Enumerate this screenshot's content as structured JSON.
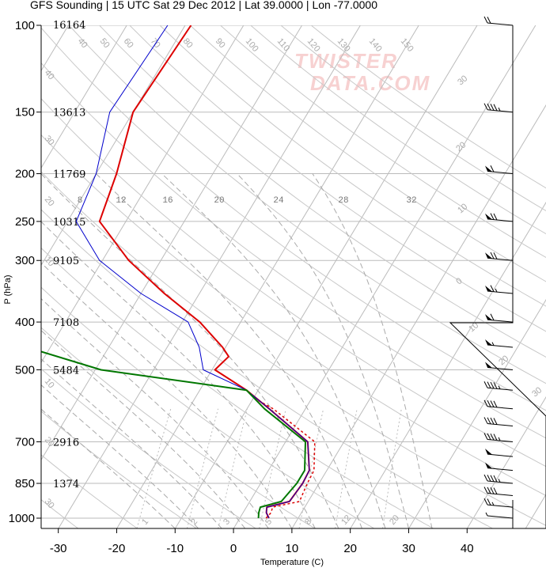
{
  "title": "GFS Sounding | 15 UTC Sat 29 Dec 2012 | Lat 39.0000 | Lon -77.0000",
  "watermark": [
    "TWISTER",
    "DATA.COM"
  ],
  "chart_data": {
    "type": "skew-t",
    "xlabel": "Temperature (C)",
    "ylabel": "P (hPa)",
    "pressure_ticks": [
      100,
      150,
      200,
      250,
      300,
      400,
      500,
      700,
      850,
      1000
    ],
    "temperature_ticks": [
      -30,
      -20,
      -10,
      0,
      10,
      20,
      30,
      40
    ],
    "xlim_at_1000hPa": [
      -33,
      48
    ],
    "ylim_hPa": [
      1050,
      100
    ],
    "heights_m": [
      {
        "p": 100,
        "h": "16164"
      },
      {
        "p": 150,
        "h": "13613"
      },
      {
        "p": 200,
        "h": "11769"
      },
      {
        "p": 250,
        "h": "10315"
      },
      {
        "p": 300,
        "h": "9105"
      },
      {
        "p": 400,
        "h": "7108"
      },
      {
        "p": 500,
        "h": "5484"
      },
      {
        "p": 700,
        "h": "2916"
      },
      {
        "p": 850,
        "h": "1374"
      }
    ],
    "mixing_ratio_labels": [
      "1",
      "2",
      "3",
      "5",
      "8",
      "12",
      "20"
    ],
    "dry_adiabat_labels": [
      "40",
      "50",
      "60",
      "70",
      "80",
      "90",
      "100",
      "110",
      "120",
      "130",
      "140",
      "150",
      "160",
      "170",
      "180"
    ],
    "left_adiabat_labels": [
      "40",
      "30",
      "20",
      "10",
      "10",
      "20",
      "30"
    ],
    "moist_adiabat_labels": [
      "8",
      "12",
      "16",
      "20",
      "24",
      "28",
      "32"
    ],
    "right_labels": [
      "30",
      "20",
      "10",
      "0",
      "10",
      "20",
      "30"
    ],
    "series": [
      {
        "name": "",
        "color": "#dd0000",
        "points": [
          [
            1000,
            5
          ],
          [
            975,
            4
          ],
          [
            950,
            3.5
          ],
          [
            925,
            6.8
          ],
          [
            850,
            7.2
          ],
          [
            800,
            7.0
          ],
          [
            700,
            3.8
          ],
          [
            600,
            -6.2
          ],
          [
            550,
            -12.0
          ],
          [
            500,
            -19.5
          ],
          [
            470,
            -18.5
          ],
          [
            450,
            -20.5
          ],
          [
            400,
            -27
          ],
          [
            350,
            -36
          ],
          [
            300,
            -45.5
          ],
          [
            250,
            -54.5
          ],
          [
            200,
            -56.5
          ],
          [
            150,
            -60
          ],
          [
            100,
            -59
          ]
        ]
      },
      {
        "name": "",
        "color": "#dd0000",
        "dashed": true,
        "points": [
          [
            1000,
            4.5
          ],
          [
            975,
            4.8
          ],
          [
            950,
            4.5
          ],
          [
            925,
            8.5
          ],
          [
            850,
            8.0
          ],
          [
            800,
            7.8
          ],
          [
            700,
            5.0
          ],
          [
            600,
            -5.5
          ],
          [
            570,
            -10.0
          ]
        ]
      },
      {
        "name": "",
        "color": "#0000cc",
        "points": [
          [
            1000,
            5
          ],
          [
            975,
            4
          ],
          [
            950,
            3.5
          ],
          [
            925,
            6.8
          ],
          [
            850,
            7.2
          ],
          [
            800,
            7.0
          ],
          [
            700,
            3.8
          ],
          [
            600,
            -6.2
          ],
          [
            550,
            -12.0
          ],
          [
            500,
            -21.5
          ],
          [
            450,
            -24.5
          ],
          [
            400,
            -29
          ],
          [
            350,
            -40
          ],
          [
            300,
            -50.5
          ],
          [
            250,
            -58.5
          ],
          [
            200,
            -60
          ],
          [
            150,
            -64
          ],
          [
            100,
            -63
          ]
        ]
      },
      {
        "name": "",
        "color": "#007700",
        "points": [
          [
            1000,
            3.2
          ],
          [
            975,
            2.7
          ],
          [
            950,
            2.4
          ],
          [
            925,
            5.4
          ],
          [
            850,
            6.2
          ],
          [
            800,
            6.2
          ],
          [
            700,
            3.4
          ],
          [
            600,
            -7.0
          ],
          [
            550,
            -12.0
          ],
          [
            500,
            -39
          ],
          [
            450,
            -54
          ],
          [
            400,
            -61
          ],
          [
            350,
            -66
          ],
          [
            300,
            -72
          ],
          [
            250,
            -81
          ],
          [
            200,
            -88
          ],
          [
            150,
            -95
          ],
          [
            100,
            -103
          ]
        ]
      }
    ],
    "wind_barbs": [
      {
        "p": 1000,
        "spd_kt": 5,
        "dir": 280
      },
      {
        "p": 950,
        "spd_kt": 25,
        "dir": 280
      },
      {
        "p": 900,
        "spd_kt": 40,
        "dir": 270
      },
      {
        "p": 850,
        "spd_kt": 45,
        "dir": 270
      },
      {
        "p": 800,
        "spd_kt": 50,
        "dir": 265
      },
      {
        "p": 750,
        "spd_kt": 50,
        "dir": 265
      },
      {
        "p": 700,
        "spd_kt": 45,
        "dir": 260
      },
      {
        "p": 650,
        "spd_kt": 40,
        "dir": 260
      },
      {
        "p": 600,
        "spd_kt": 40,
        "dir": 265
      },
      {
        "p": 550,
        "spd_kt": 45,
        "dir": 265
      },
      {
        "p": 500,
        "spd_kt": 50,
        "dir": 265
      },
      {
        "p": 450,
        "spd_kt": 55,
        "dir": 265
      },
      {
        "p": 400,
        "spd_kt": 60,
        "dir": 265
      },
      {
        "p": 350,
        "spd_kt": 65,
        "dir": 265
      },
      {
        "p": 300,
        "spd_kt": 70,
        "dir": 265
      },
      {
        "p": 250,
        "spd_kt": 70,
        "dir": 265
      },
      {
        "p": 200,
        "spd_kt": 60,
        "dir": 265
      },
      {
        "p": 150,
        "spd_kt": 45,
        "dir": 265
      },
      {
        "p": 100,
        "spd_kt": 20,
        "dir": 270
      }
    ]
  }
}
